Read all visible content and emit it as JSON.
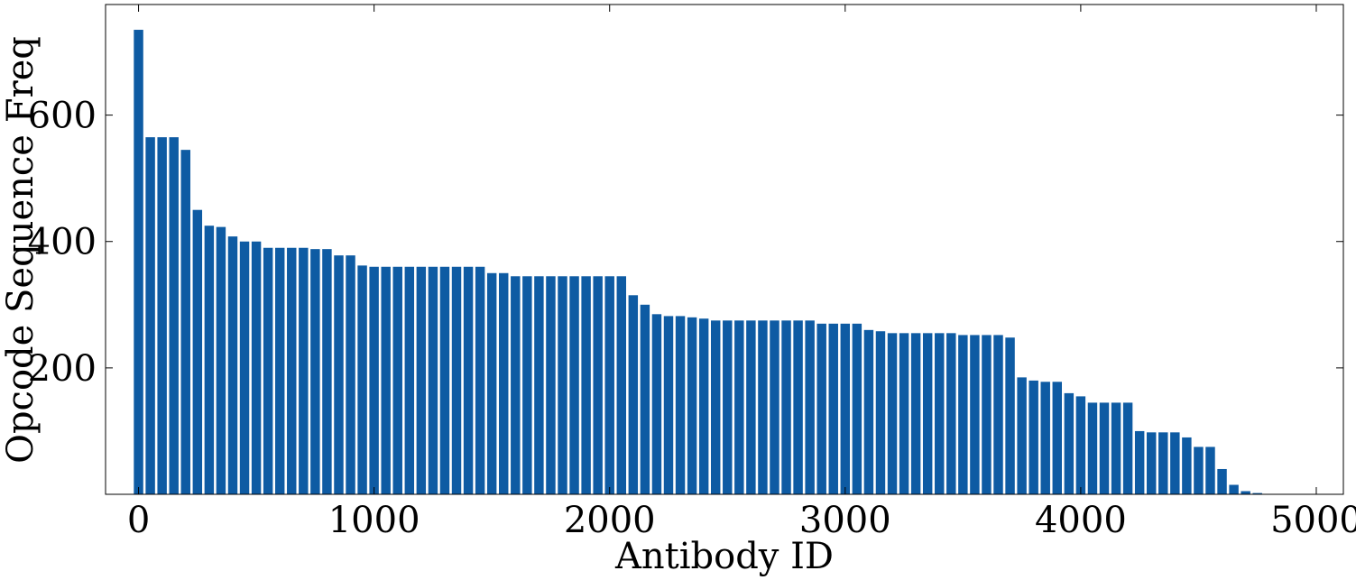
{
  "chart_data": {
    "type": "bar",
    "xlabel": "Antibody ID",
    "ylabel": "Opcode Sequence Freq",
    "x": [
      0,
      50,
      100,
      150,
      200,
      250,
      300,
      350,
      400,
      450,
      500,
      550,
      600,
      650,
      700,
      750,
      800,
      850,
      900,
      950,
      1000,
      1050,
      1100,
      1150,
      1200,
      1250,
      1300,
      1350,
      1400,
      1450,
      1500,
      1550,
      1600,
      1650,
      1700,
      1750,
      1800,
      1850,
      1900,
      1950,
      2000,
      2050,
      2100,
      2150,
      2200,
      2250,
      2300,
      2350,
      2400,
      2450,
      2500,
      2550,
      2600,
      2650,
      2700,
      2750,
      2800,
      2850,
      2900,
      2950,
      3000,
      3050,
      3100,
      3150,
      3200,
      3250,
      3300,
      3350,
      3400,
      3450,
      3500,
      3550,
      3600,
      3650,
      3700,
      3750,
      3800,
      3850,
      3900,
      3950,
      4000,
      4050,
      4100,
      4150,
      4200,
      4250,
      4300,
      4350,
      4400,
      4450,
      4500,
      4550,
      4600,
      4650,
      4700,
      4750
    ],
    "values": [
      735,
      565,
      565,
      565,
      545,
      450,
      425,
      423,
      408,
      400,
      400,
      390,
      390,
      390,
      390,
      388,
      388,
      378,
      378,
      362,
      360,
      360,
      360,
      360,
      360,
      360,
      360,
      360,
      360,
      360,
      350,
      350,
      345,
      345,
      345,
      345,
      345,
      345,
      345,
      345,
      345,
      345,
      315,
      300,
      285,
      282,
      282,
      280,
      278,
      275,
      275,
      275,
      275,
      275,
      275,
      275,
      275,
      275,
      270,
      270,
      270,
      270,
      260,
      258,
      255,
      255,
      255,
      255,
      255,
      255,
      252,
      252,
      252,
      252,
      248,
      185,
      180,
      178,
      178,
      160,
      155,
      145,
      145,
      145,
      145,
      100,
      98,
      98,
      98,
      90,
      75,
      75,
      40,
      15,
      5,
      2
    ],
    "color": "#0e5ba3",
    "xlim": [
      -140,
      5115
    ],
    "xticks": [
      0,
      1000,
      2000,
      3000,
      4000,
      5000
    ],
    "ylim": [
      0,
      775
    ],
    "yticks": [
      200,
      400,
      600
    ]
  }
}
